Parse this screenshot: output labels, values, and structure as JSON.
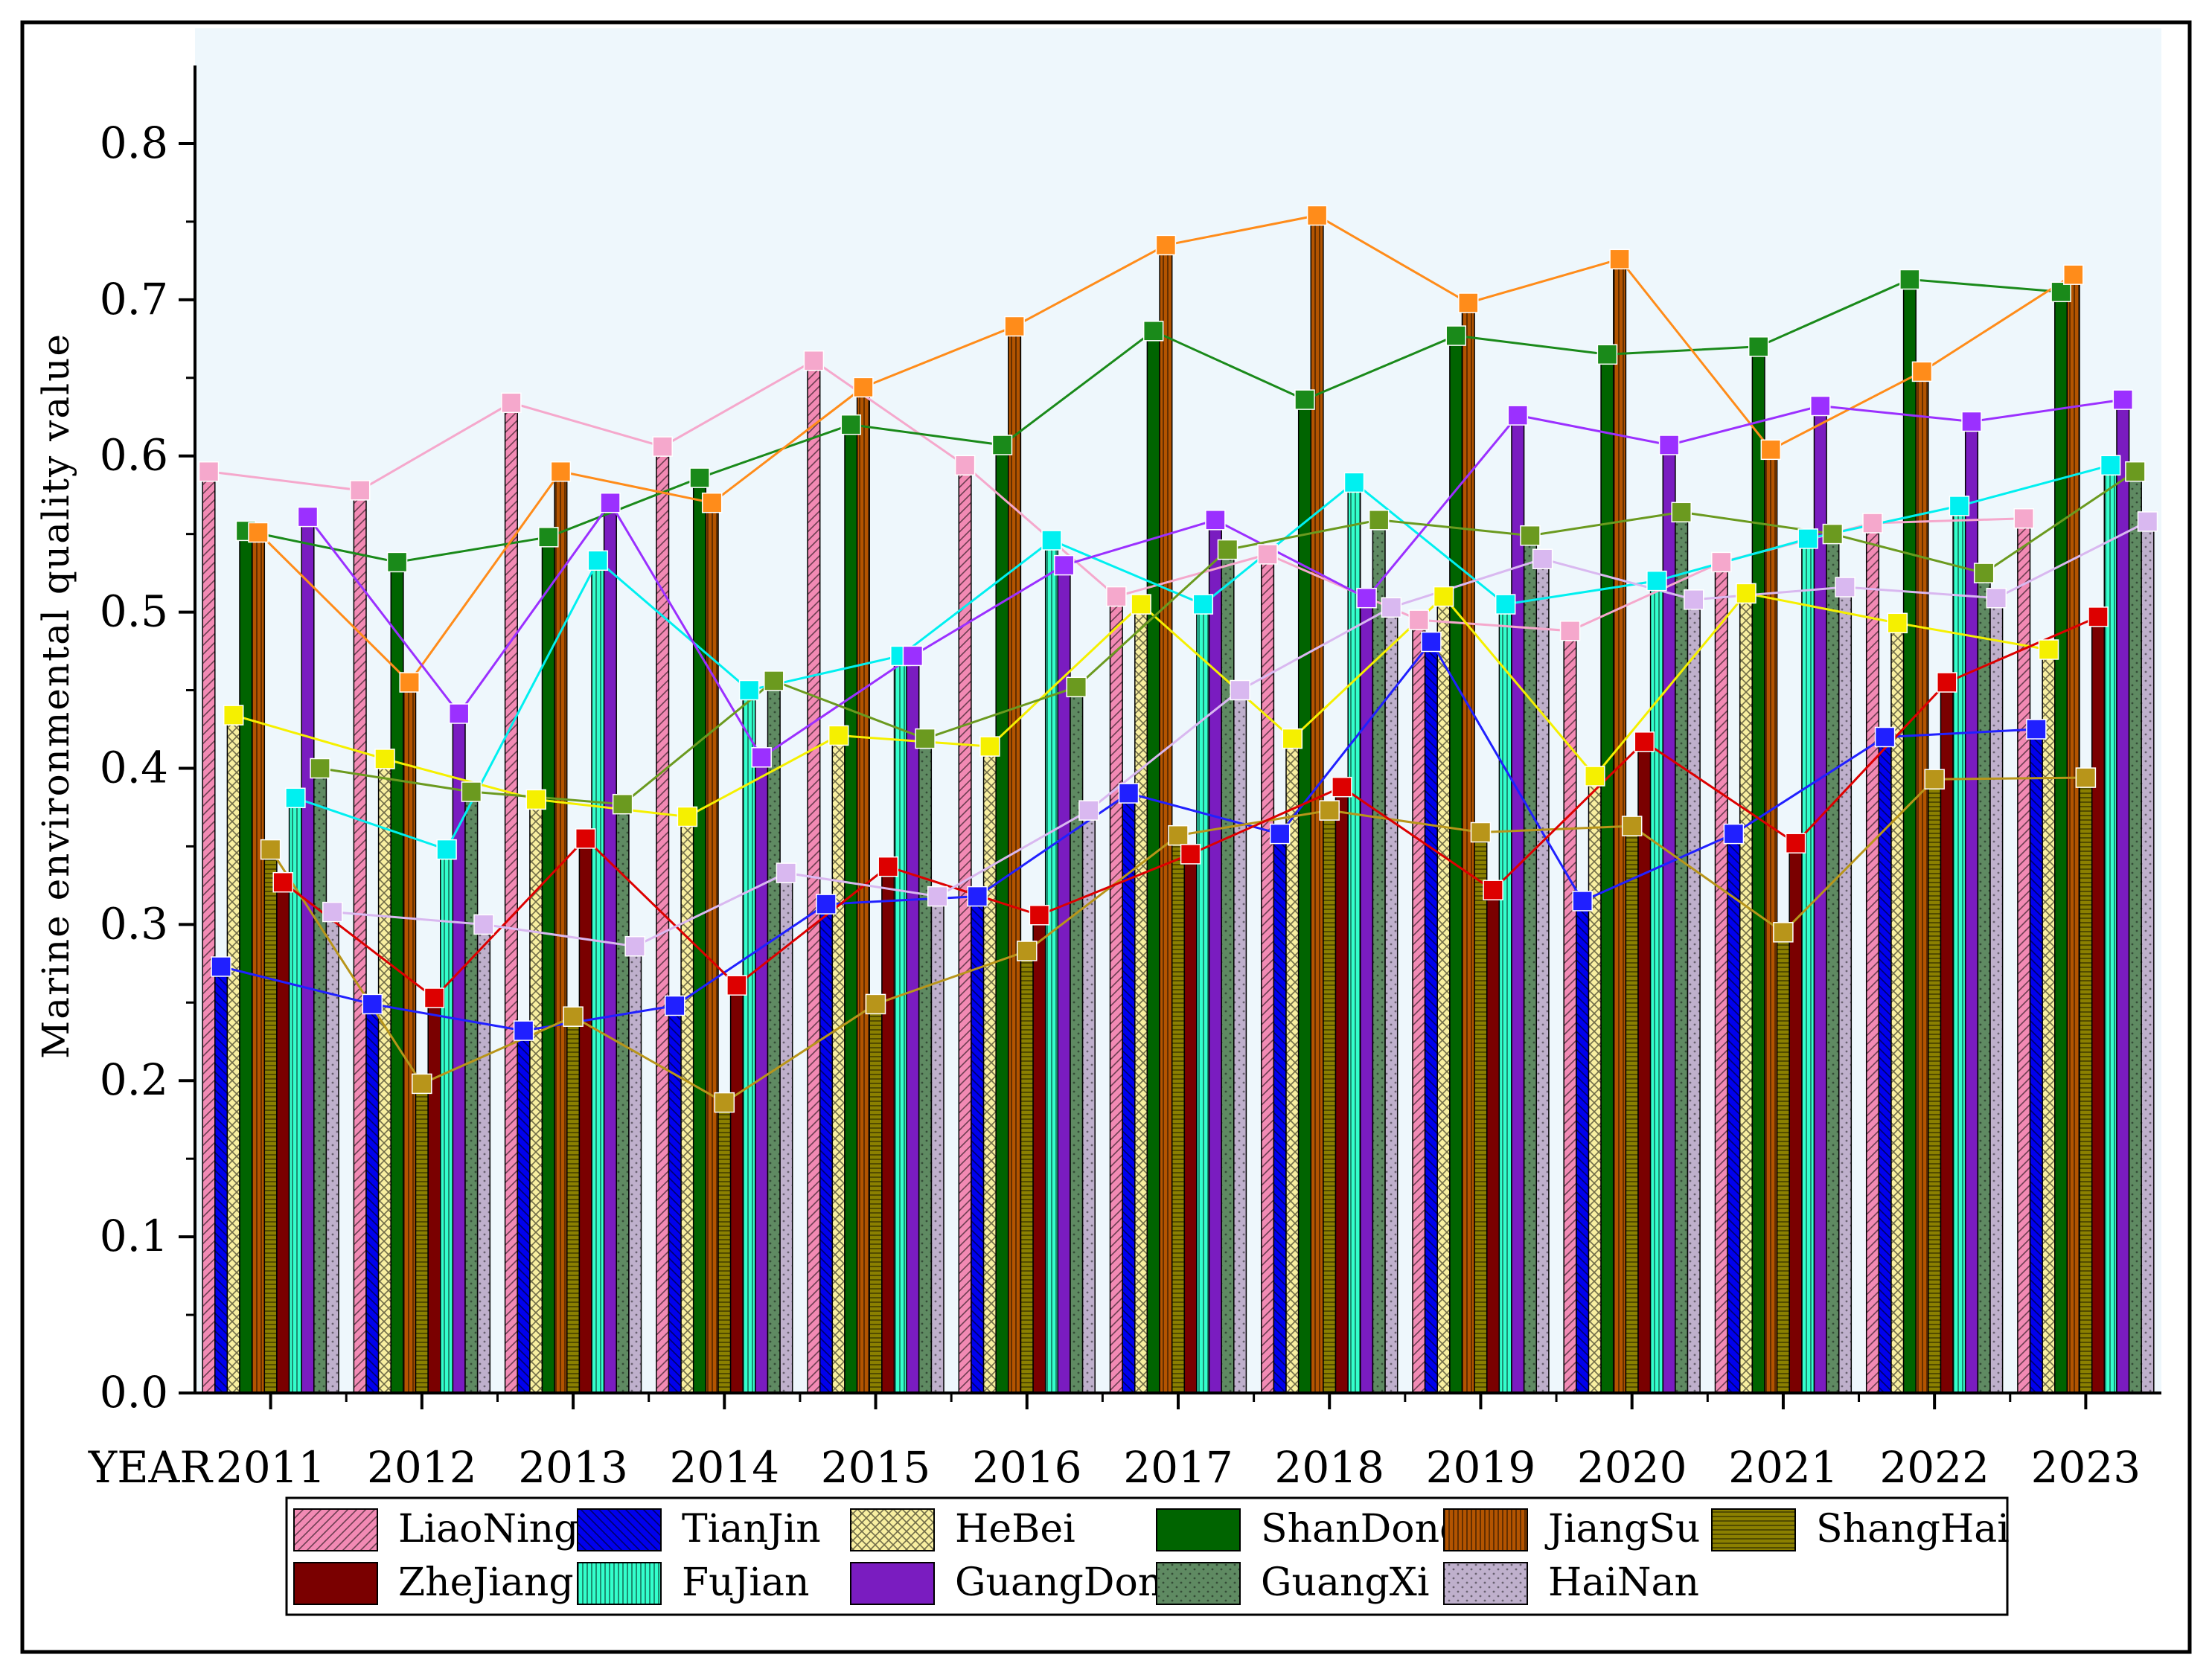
{
  "chart_data": {
    "type": "bar",
    "overlay": "line",
    "title": "",
    "xlabel": "YEAR",
    "ylabel": "Marine environmental quality value",
    "ylim": [
      0,
      0.85
    ],
    "yticks": [
      0.0,
      0.1,
      0.2,
      0.3,
      0.4,
      0.5,
      0.6,
      0.7,
      0.8
    ],
    "ytick_labels": [
      "0.0",
      "0.1",
      "0.2",
      "0.3",
      "0.4",
      "0.5",
      "0.6",
      "0.7",
      "0.8"
    ],
    "categories": [
      "2011",
      "2012",
      "2013",
      "2014",
      "2015",
      "2016",
      "2017",
      "2018",
      "2019",
      "2020",
      "2021",
      "2022",
      "2023"
    ],
    "legend_position": "bottom",
    "grid": false,
    "series": [
      {
        "name": "LiaoNing",
        "bar_color": "#f28ab4",
        "line_color": "#f5a8cc",
        "pattern": "diag-right",
        "values": [
          0.59,
          0.578,
          0.634,
          0.606,
          0.661,
          0.594,
          0.51,
          0.537,
          0.495,
          0.488,
          0.532,
          0.557,
          0.56
        ]
      },
      {
        "name": "TianJin",
        "bar_color": "#0000ee",
        "line_color": "#2020ff",
        "pattern": "diag-left",
        "values": [
          0.273,
          0.249,
          0.232,
          0.248,
          0.313,
          0.318,
          0.384,
          0.358,
          0.481,
          0.315,
          0.358,
          0.42,
          0.425
        ]
      },
      {
        "name": "HeBei",
        "bar_color": "#f8efa0",
        "line_color": "#f5f000",
        "pattern": "cross",
        "values": [
          0.434,
          0.406,
          0.38,
          0.369,
          0.421,
          0.414,
          0.505,
          0.419,
          0.51,
          0.395,
          0.512,
          0.493,
          0.476
        ]
      },
      {
        "name": "ShanDong",
        "bar_color": "#006400",
        "line_color": "#1a8a1a",
        "pattern": "solid",
        "values": [
          0.552,
          0.532,
          0.548,
          0.586,
          0.62,
          0.607,
          0.68,
          0.636,
          0.677,
          0.665,
          0.67,
          0.713,
          0.705
        ]
      },
      {
        "name": "JiangSu",
        "bar_color": "#b35400",
        "line_color": "#ff8c1a",
        "pattern": "vertical",
        "values": [
          0.551,
          0.455,
          0.59,
          0.57,
          0.644,
          0.683,
          0.735,
          0.754,
          0.698,
          0.726,
          0.604,
          0.654,
          0.716
        ]
      },
      {
        "name": "ShangHai",
        "bar_color": "#8b8000",
        "line_color": "#b8951a",
        "pattern": "horizontal",
        "values": [
          0.348,
          0.198,
          0.241,
          0.186,
          0.249,
          0.283,
          0.357,
          0.373,
          0.359,
          0.363,
          0.295,
          0.393,
          0.394
        ]
      },
      {
        "name": "ZheJiang",
        "bar_color": "#7a0000",
        "line_color": "#dd0000",
        "pattern": "solid",
        "values": [
          0.327,
          0.253,
          0.355,
          0.261,
          0.337,
          0.306,
          0.345,
          0.388,
          0.322,
          0.417,
          0.352,
          0.455,
          0.497
        ]
      },
      {
        "name": "FuJian",
        "bar_color": "#33ffcc",
        "line_color": "#00f0f0",
        "pattern": "vertical",
        "values": [
          0.381,
          0.348,
          0.533,
          0.45,
          0.472,
          0.546,
          0.505,
          0.583,
          0.505,
          0.52,
          0.547,
          0.568,
          0.594
        ]
      },
      {
        "name": "GuangDong",
        "bar_color": "#7a1cc0",
        "line_color": "#9b30ff",
        "pattern": "solid",
        "values": [
          0.561,
          0.435,
          0.57,
          0.407,
          0.472,
          0.53,
          0.559,
          0.509,
          0.626,
          0.607,
          0.632,
          0.622,
          0.636
        ]
      },
      {
        "name": "GuangXi",
        "bar_color": "#5f8a62",
        "line_color": "#6b9a1f",
        "pattern": "dots",
        "values": [
          0.4,
          0.385,
          0.377,
          0.456,
          0.419,
          0.452,
          0.54,
          0.559,
          0.549,
          0.564,
          0.55,
          0.525,
          0.59
        ]
      },
      {
        "name": "HaiNan",
        "bar_color": "#bfb0cc",
        "line_color": "#d9b8f0",
        "pattern": "dots",
        "values": [
          0.308,
          0.3,
          0.286,
          0.333,
          0.318,
          0.373,
          0.45,
          0.503,
          0.534,
          0.508,
          0.516,
          0.509,
          0.558
        ]
      }
    ]
  }
}
